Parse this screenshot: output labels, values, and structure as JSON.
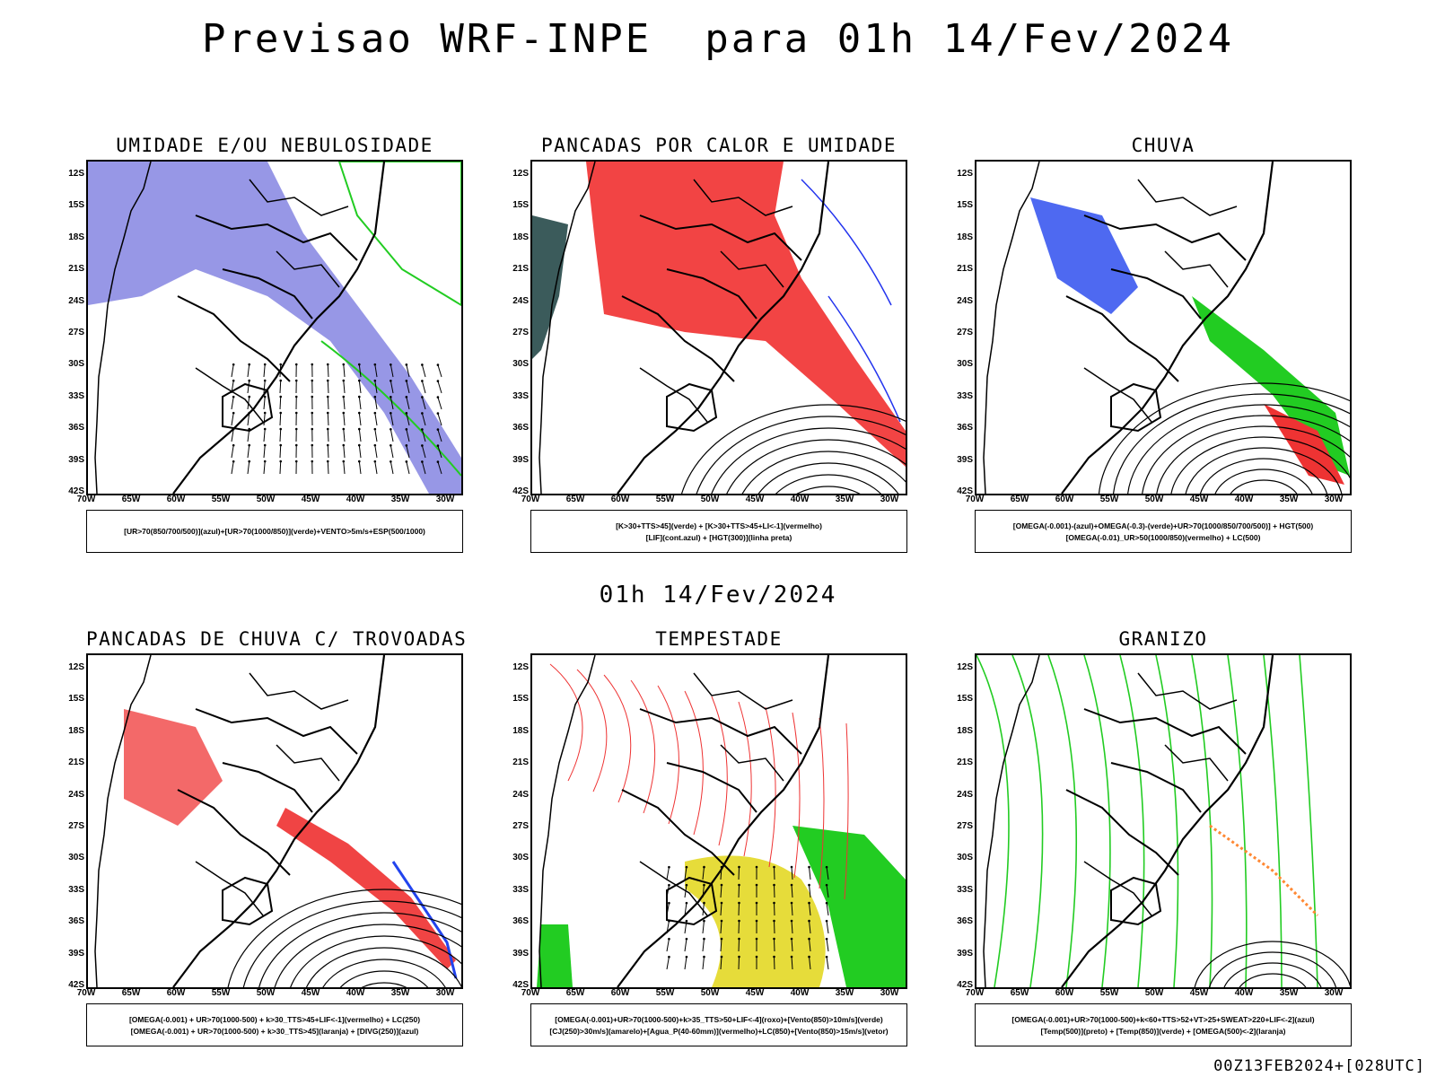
{
  "header": {
    "title": "Previsao WRF-INPE  para 01h 14/Fev/2024",
    "subtitle": "01h 14/Fev/2024",
    "run_stamp": "00Z13FEB2024+[028UTC]"
  },
  "axes": {
    "lat_labels": [
      "12S",
      "15S",
      "18S",
      "21S",
      "24S",
      "27S",
      "30S",
      "33S",
      "36S",
      "39S",
      "42S"
    ],
    "lon_labels": [
      "70W",
      "65W",
      "60W",
      "55W",
      "50W",
      "45W",
      "40W",
      "35W",
      "30W"
    ]
  },
  "panels": [
    {
      "title": "UMIDADE E/OU NEBULOSIDADE",
      "legend": [
        "[UR>70(850/700/500)](azul)+[UR>70(1000/850)](verde)+VENTO>5m/s+ESP(500/1000)"
      ],
      "colors": {
        "blue": "#6b6bdc",
        "green": "#22cc22",
        "red": "#ff3333"
      }
    },
    {
      "title": "PANCADAS POR CALOR E UMIDADE",
      "legend": [
        "[K>30+TTS>45](verde) + [K>30+TTS>45+LI<-1](vermelho)",
        "[LIF](cont.azul) + [HGT(300)](linha preta)"
      ],
      "colors": {
        "red": "#f24444",
        "blue": "#2233ee",
        "dark": "#3b5b5b"
      }
    },
    {
      "title": "CHUVA",
      "legend": [
        "[OMEGA(-0.001)-(azul)+OMEGA(-0.3)-(verde)+UR>70(1000/850/700/500)] + HGT(500)",
        "[OMEGA(-0.01)_UR>50(1000/850)(vermelho) + LC(500)"
      ],
      "colors": {
        "blue": "#2244ee",
        "green": "#22cc22",
        "red": "#ee3333"
      }
    },
    {
      "title": "PANCADAS DE CHUVA C/ TROVOADAS",
      "legend": [
        "[OMEGA(-0.001) + UR>70(1000-500) + k>30_TTS>45+LIF<-1](vermelho) + LC(250)",
        "[OMEGA(-0.001) + UR>70(1000-500) + k>30_TTS>45](laranja) + [DIVG(250)](azul)"
      ],
      "colors": {
        "red": "#f04444",
        "blue": "#2244ee",
        "orange": "#ff8833"
      }
    },
    {
      "title": "TEMPESTADE",
      "legend": [
        "[OMEGA(-0.001)+UR>70(1000-500)+k>35_TTS>50+LIF<-4](roxo)+[Vento(850)>10m/s](verde)",
        "[CJ(250)>30m/s](amarelo)+[Agua_P(40-60mm)](vermelho)+LC(850)+[Vento(850)>15m/s](vetor)"
      ],
      "colors": {
        "red": "#ee3333",
        "yellow": "#e6dc3a",
        "green": "#22cc22"
      }
    },
    {
      "title": "GRANIZO",
      "legend": [
        "[OMEGA(-0.001)+UR>70(1000-500)+k<60+TTS>52+VT>25+SWEAT>220+LIF<-2](azul)",
        "[Temp(500)](preto) + [Temp(850)](verde) + [OMEGA(500)<-2](laranja)"
      ],
      "colors": {
        "green": "#22cc22",
        "orange": "#ff8833",
        "blue": "#2244ee"
      }
    }
  ]
}
